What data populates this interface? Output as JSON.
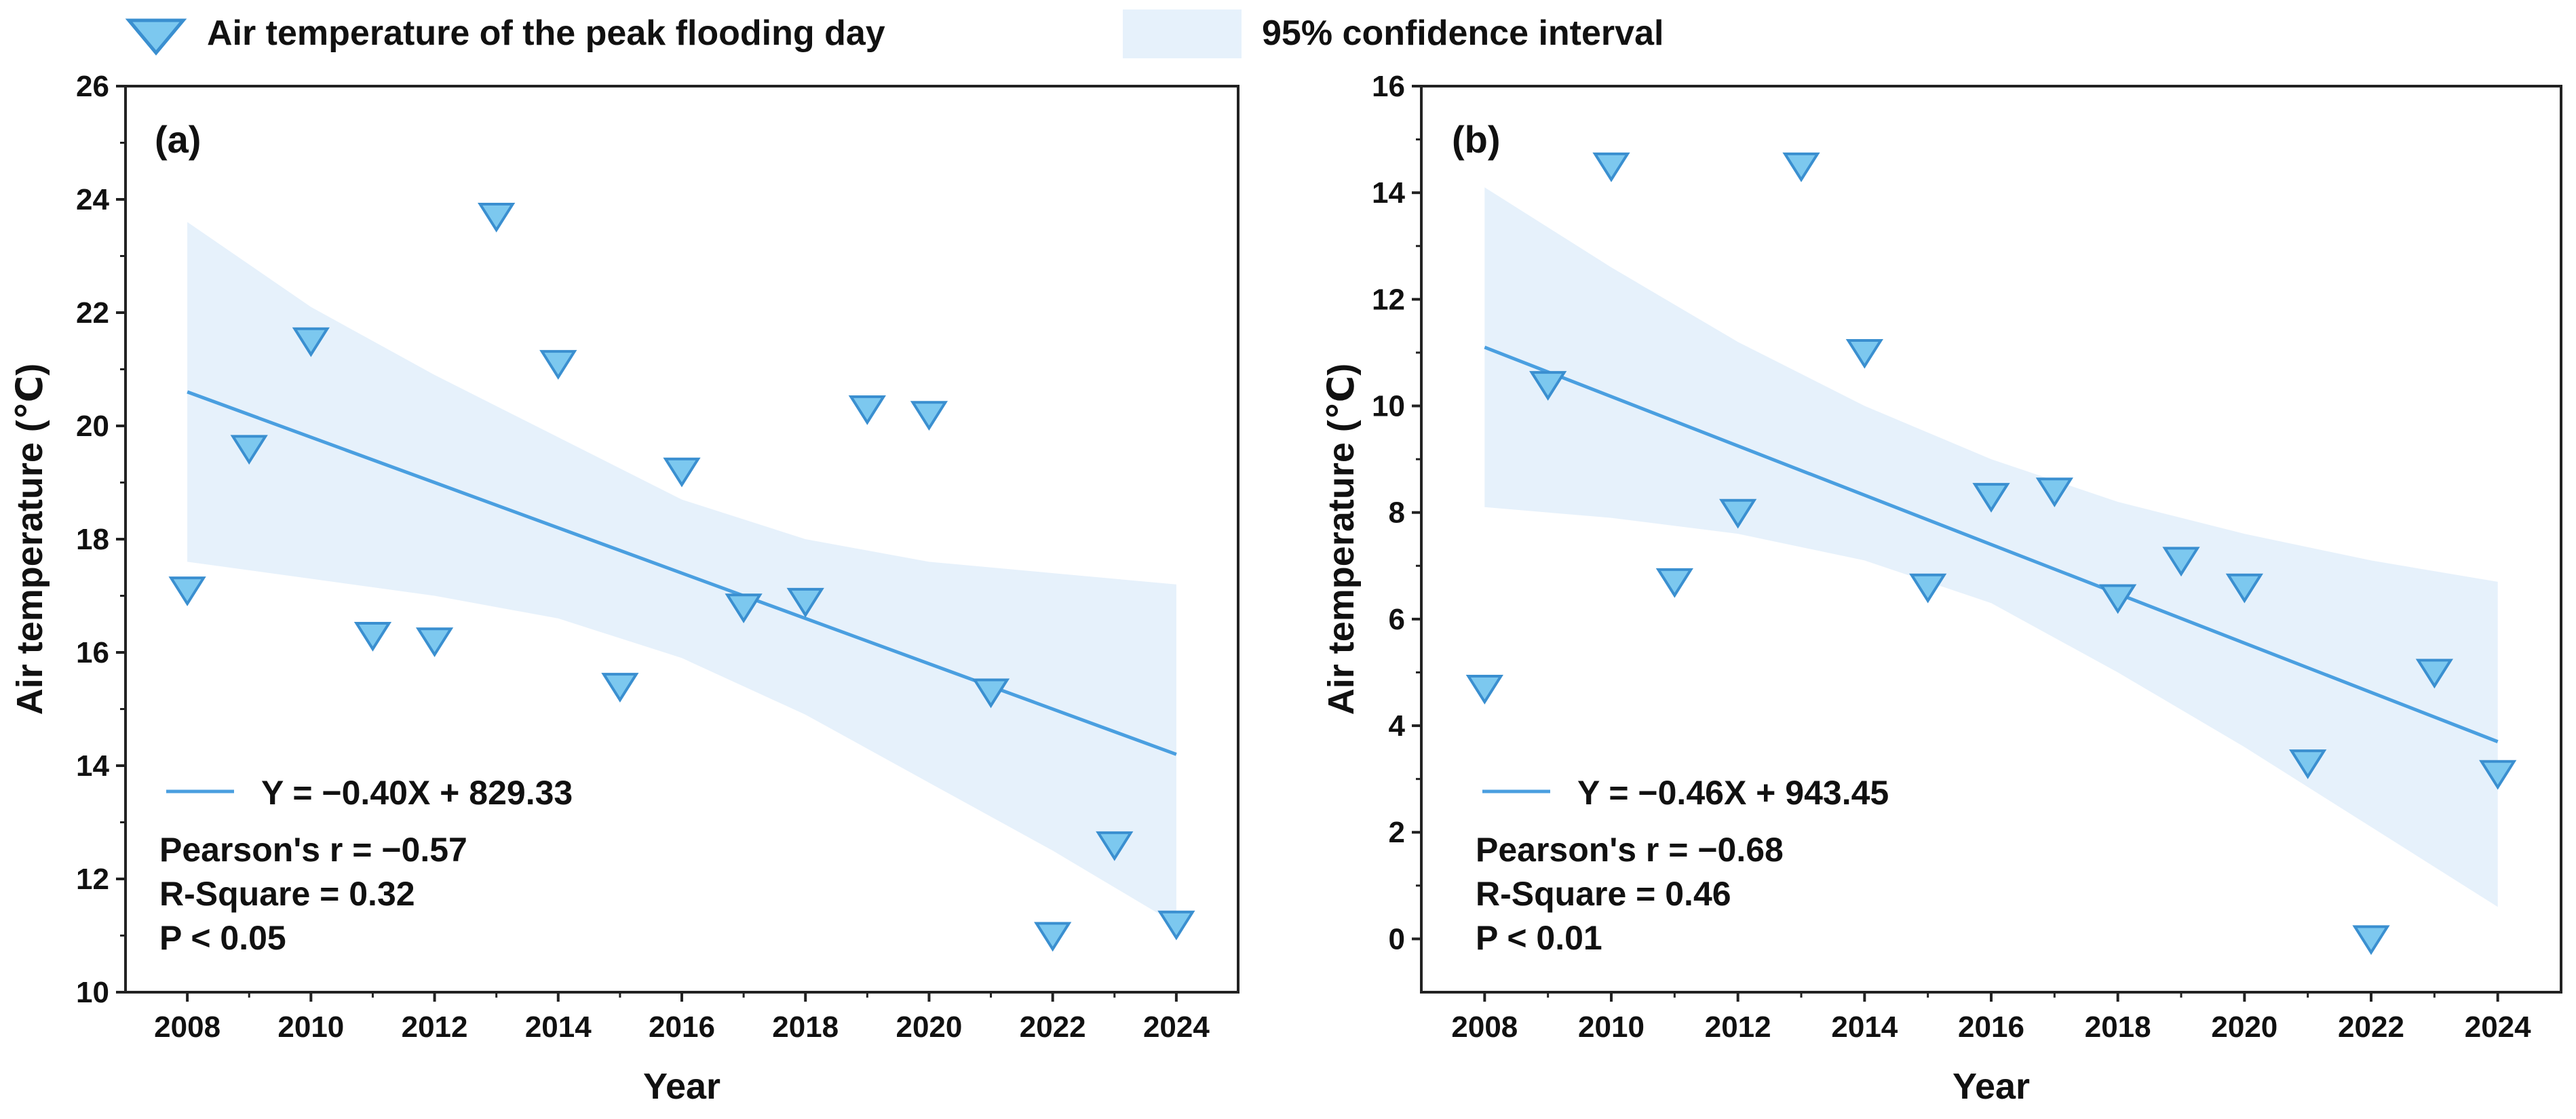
{
  "legend": {
    "marker_label": "Air temperature of the peak flooding day",
    "band_label": "95% confidence interval"
  },
  "colors": {
    "marker_fill": "#7cc8ef",
    "marker_stroke": "#3a8fd0",
    "line": "#4a9fe0",
    "band": "#e6f1fb",
    "axis": "#222222"
  },
  "chart_data": [
    {
      "type": "scatter",
      "panel_label": "(a)",
      "xlabel": "Year",
      "ylabel": "Air temperature (℃)",
      "xlim": [
        2007,
        2025
      ],
      "ylim": [
        10,
        26
      ],
      "xticks": [
        2008,
        2010,
        2012,
        2014,
        2016,
        2018,
        2020,
        2022,
        2024
      ],
      "yticks": [
        10,
        12,
        14,
        16,
        18,
        20,
        22,
        24,
        26
      ],
      "x": [
        2008,
        2009,
        2010,
        2011,
        2012,
        2013,
        2014,
        2015,
        2016,
        2017,
        2018,
        2019,
        2020,
        2021,
        2022,
        2023,
        2024
      ],
      "y": [
        17.1,
        19.6,
        21.5,
        16.3,
        16.2,
        23.7,
        21.1,
        15.4,
        19.2,
        16.8,
        16.9,
        20.3,
        20.2,
        15.3,
        11.0,
        12.6,
        11.2
      ],
      "fit": {
        "x_range": [
          2008,
          2024
        ],
        "y_start": 20.6,
        "y_end": 14.2
      },
      "ci_upper": [
        [
          2008,
          23.6
        ],
        [
          2010,
          22.1
        ],
        [
          2012,
          20.9
        ],
        [
          2014,
          19.8
        ],
        [
          2016,
          18.7
        ],
        [
          2018,
          18.0
        ],
        [
          2020,
          17.6
        ],
        [
          2022,
          17.4
        ],
        [
          2024,
          17.2
        ]
      ],
      "ci_lower": [
        [
          2008,
          17.6
        ],
        [
          2010,
          17.3
        ],
        [
          2012,
          17.0
        ],
        [
          2014,
          16.6
        ],
        [
          2016,
          15.9
        ],
        [
          2018,
          14.9
        ],
        [
          2020,
          13.7
        ],
        [
          2022,
          12.5
        ],
        [
          2024,
          11.2
        ]
      ],
      "equation": "Y = −0.40X + 829.33",
      "stats": [
        "Pearson's r = −0.57",
        "R-Square = 0.32",
        "P < 0.05"
      ]
    },
    {
      "type": "scatter",
      "panel_label": "(b)",
      "xlabel": "Year",
      "ylabel": "Air temperature (℃)",
      "xlim": [
        2007,
        2025
      ],
      "ylim": [
        -1,
        16
      ],
      "xticks": [
        2008,
        2010,
        2012,
        2014,
        2016,
        2018,
        2020,
        2022,
        2024
      ],
      "yticks": [
        0,
        2,
        4,
        6,
        8,
        10,
        12,
        14,
        16
      ],
      "x": [
        2008,
        2009,
        2010,
        2011,
        2012,
        2013,
        2014,
        2015,
        2016,
        2017,
        2018,
        2019,
        2020,
        2021,
        2022,
        2023,
        2024
      ],
      "y": [
        4.7,
        10.4,
        14.5,
        6.7,
        8.0,
        14.5,
        11.0,
        6.6,
        8.3,
        8.4,
        6.4,
        7.1,
        6.6,
        3.3,
        0.0,
        5.0,
        3.1
      ],
      "fit": {
        "x_range": [
          2008,
          2024
        ],
        "y_start": 11.1,
        "y_end": 3.7
      },
      "ci_upper": [
        [
          2008,
          14.1
        ],
        [
          2010,
          12.6
        ],
        [
          2012,
          11.2
        ],
        [
          2014,
          10.0
        ],
        [
          2016,
          9.0
        ],
        [
          2018,
          8.2
        ],
        [
          2020,
          7.6
        ],
        [
          2022,
          7.1
        ],
        [
          2024,
          6.7
        ]
      ],
      "ci_lower": [
        [
          2008,
          8.1
        ],
        [
          2010,
          7.9
        ],
        [
          2012,
          7.6
        ],
        [
          2014,
          7.1
        ],
        [
          2016,
          6.3
        ],
        [
          2018,
          5.0
        ],
        [
          2020,
          3.6
        ],
        [
          2022,
          2.1
        ],
        [
          2024,
          0.6
        ]
      ],
      "equation": "Y = −0.46X + 943.45",
      "stats": [
        "Pearson's r = −0.68",
        "R-Square = 0.46",
        "P < 0.01"
      ]
    }
  ]
}
